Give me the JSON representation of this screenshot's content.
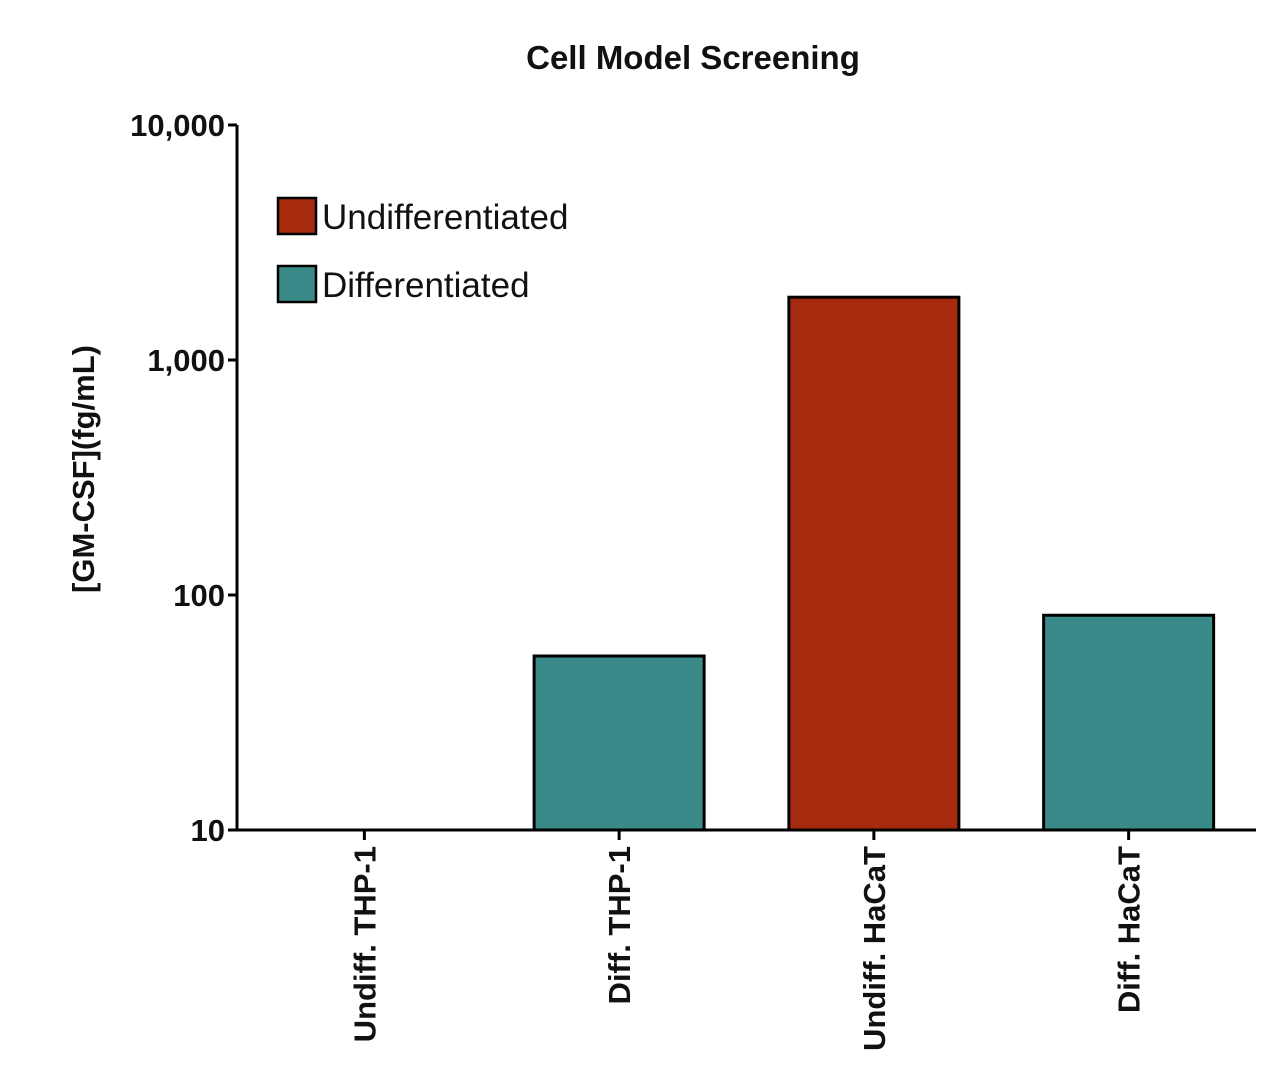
{
  "chart_data": {
    "type": "bar",
    "title": "Cell Model Screening",
    "xlabel": "",
    "ylabel": "[GM-CSF](fg/mL)",
    "yscale": "log",
    "ylim": [
      10,
      10000
    ],
    "yticks": [
      {
        "value": 10,
        "label": "10"
      },
      {
        "value": 100,
        "label": "100"
      },
      {
        "value": 1000,
        "label": "1,000"
      },
      {
        "value": 10000,
        "label": "10,000"
      }
    ],
    "categories": [
      "Undiff. THP-1",
      "Diff. THP-1",
      "Undiff. HaCaT",
      "Diff. HaCaT"
    ],
    "values": [
      null,
      55,
      1850,
      82
    ],
    "bar_series": [
      "Undifferentiated",
      "Differentiated",
      "Undifferentiated",
      "Differentiated"
    ],
    "legend": {
      "position": "top-left",
      "items": [
        {
          "name": "Undifferentiated",
          "color": "#a62b0e"
        },
        {
          "name": "Differentiated",
          "color": "#3a8a8a"
        }
      ]
    },
    "grid": false
  }
}
